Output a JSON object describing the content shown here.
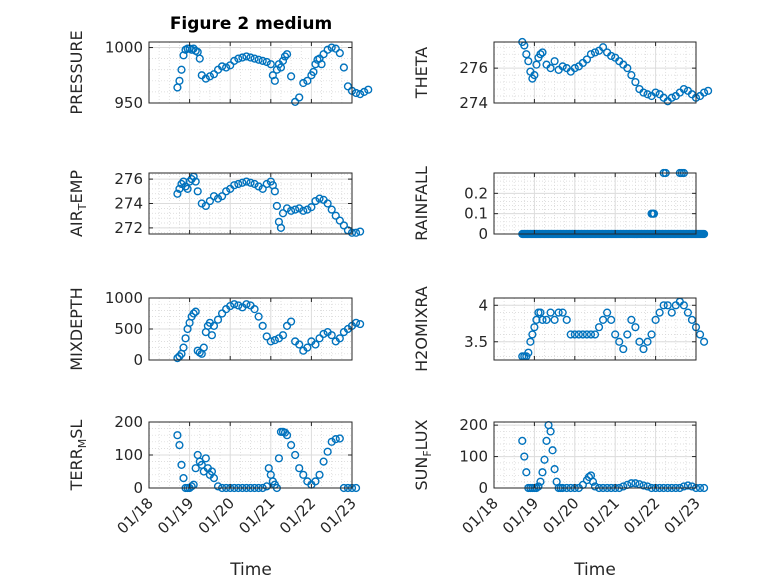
{
  "figure": {
    "title": "Figure 2 medium",
    "accent": "#0072BD"
  },
  "x_axis": {
    "label": "Time",
    "ticks": [
      "01/18",
      "01/19",
      "01/20",
      "01/21",
      "01/22",
      "01/23"
    ]
  },
  "chart_data": [
    {
      "type": "scatter",
      "ylabel": "PRESSURE",
      "title": "Figure 2 medium",
      "xlim": [
        "01/18",
        "01/23"
      ],
      "ylim": [
        950,
        1005
      ],
      "yticks": [
        950,
        1000
      ],
      "grid": true,
      "x": [
        0.7,
        0.75,
        0.8,
        0.85,
        0.9,
        0.95,
        1.0,
        1.05,
        1.1,
        1.15,
        1.2,
        1.25,
        1.3,
        1.4,
        1.5,
        1.6,
        1.7,
        1.8,
        1.9,
        2.0,
        2.1,
        2.2,
        2.3,
        2.4,
        2.5,
        2.6,
        2.7,
        2.8,
        2.9,
        3.0,
        3.05,
        3.1,
        3.15,
        3.2,
        3.25,
        3.3,
        3.35,
        3.4,
        3.5,
        3.6,
        3.7,
        3.8,
        3.9,
        4.0,
        4.05,
        4.1,
        4.15,
        4.2,
        4.25,
        4.3,
        4.4,
        4.5,
        4.6,
        4.7,
        4.8,
        4.9,
        5.0,
        5.1,
        5.2,
        5.3,
        5.4
      ],
      "y": [
        964,
        970,
        980,
        993,
        998,
        999,
        999,
        998,
        999,
        997,
        996,
        990,
        975,
        972,
        974,
        976,
        980,
        983,
        982,
        984,
        988,
        990,
        991,
        992,
        991,
        990,
        989,
        988,
        987,
        985,
        975,
        970,
        980,
        985,
        982,
        988,
        992,
        994,
        974,
        951,
        955,
        968,
        970,
        975,
        978,
        985,
        989,
        990,
        985,
        994,
        998,
        1000,
        999,
        995,
        982,
        965,
        961,
        959,
        958,
        960,
        962
      ],
      "marker": "circle-open",
      "color": "#0072BD"
    },
    {
      "type": "scatter",
      "ylabel": "THETA",
      "xlim": [
        "01/18",
        "01/23"
      ],
      "ylim": [
        274,
        277.5
      ],
      "yticks": [
        274,
        276
      ],
      "grid": true,
      "x": [
        0.7,
        0.75,
        0.8,
        0.85,
        0.9,
        0.95,
        1.0,
        1.05,
        1.1,
        1.15,
        1.2,
        1.3,
        1.4,
        1.5,
        1.6,
        1.7,
        1.8,
        1.9,
        2.0,
        2.1,
        2.2,
        2.3,
        2.4,
        2.5,
        2.6,
        2.7,
        2.8,
        2.9,
        3.0,
        3.1,
        3.2,
        3.3,
        3.4,
        3.5,
        3.6,
        3.7,
        3.8,
        3.9,
        4.0,
        4.1,
        4.2,
        4.3,
        4.4,
        4.5,
        4.6,
        4.7,
        4.8,
        4.9,
        5.0,
        5.1,
        5.2,
        5.3
      ],
      "y": [
        277.5,
        277.3,
        276.8,
        276.4,
        275.8,
        275.4,
        275.6,
        276.2,
        276.6,
        276.8,
        276.9,
        276.2,
        276.0,
        276.4,
        275.9,
        276.1,
        276.0,
        275.8,
        276.0,
        276.1,
        276.3,
        276.5,
        276.8,
        276.9,
        277.0,
        277.2,
        276.9,
        276.7,
        276.6,
        276.4,
        276.2,
        276.0,
        275.6,
        275.2,
        274.8,
        274.6,
        274.5,
        274.4,
        274.6,
        274.5,
        274.3,
        274.1,
        274.3,
        274.4,
        274.6,
        274.8,
        274.7,
        274.5,
        274.3,
        274.4,
        274.6,
        274.7
      ],
      "marker": "circle-open",
      "color": "#0072BD"
    },
    {
      "type": "scatter",
      "ylabel": "AIR_TEMP",
      "xlim": [
        "01/18",
        "01/23"
      ],
      "ylim": [
        271.5,
        276.5
      ],
      "yticks": [
        272,
        274,
        276
      ],
      "grid": true,
      "x": [
        0.7,
        0.75,
        0.8,
        0.85,
        0.9,
        0.95,
        1.0,
        1.05,
        1.1,
        1.15,
        1.2,
        1.3,
        1.4,
        1.5,
        1.6,
        1.7,
        1.8,
        1.9,
        2.0,
        2.1,
        2.2,
        2.3,
        2.4,
        2.5,
        2.6,
        2.7,
        2.8,
        2.9,
        3.0,
        3.05,
        3.1,
        3.15,
        3.2,
        3.25,
        3.3,
        3.4,
        3.5,
        3.6,
        3.7,
        3.8,
        3.9,
        4.0,
        4.1,
        4.2,
        4.3,
        4.4,
        4.5,
        4.6,
        4.7,
        4.8,
        4.9,
        5.0,
        5.1,
        5.2
      ],
      "y": [
        274.8,
        275.2,
        275.6,
        275.8,
        275.4,
        275.2,
        275.8,
        276.0,
        276.2,
        275.8,
        275.0,
        274.0,
        273.8,
        274.2,
        274.6,
        274.4,
        274.6,
        275.0,
        275.2,
        275.5,
        275.6,
        275.7,
        275.8,
        275.7,
        275.6,
        275.4,
        275.2,
        275.6,
        275.8,
        275.5,
        275.0,
        273.8,
        272.5,
        272.0,
        273.2,
        273.6,
        273.4,
        273.5,
        273.6,
        273.4,
        273.5,
        273.7,
        274.2,
        274.4,
        274.3,
        274.0,
        273.5,
        273.0,
        272.6,
        272.2,
        271.8,
        271.6,
        271.6,
        271.7
      ],
      "marker": "circle-open",
      "color": "#0072BD"
    },
    {
      "type": "scatter",
      "ylabel": "RAINFALL",
      "xlim": [
        "01/18",
        "01/23"
      ],
      "ylim": [
        0,
        0.3
      ],
      "yticks": [
        0,
        0.1,
        0.2
      ],
      "grid": true,
      "x_from": 0.7,
      "x_to": 5.2,
      "baseline": 0,
      "x": [
        3.9,
        3.93,
        3.96,
        4.2,
        4.25,
        4.6,
        4.65,
        4.7
      ],
      "y": [
        0.1,
        0.1,
        0.1,
        0.3,
        0.3,
        0.3,
        0.3,
        0.3
      ],
      "marker": "circle-open",
      "color": "#0072BD"
    },
    {
      "type": "scatter",
      "ylabel": "MIXDEPTH",
      "xlim": [
        "01/18",
        "01/23"
      ],
      "ylim": [
        0,
        1000
      ],
      "yticks": [
        0,
        500,
        1000
      ],
      "grid": true,
      "x": [
        0.7,
        0.75,
        0.8,
        0.85,
        0.9,
        0.95,
        1.0,
        1.05,
        1.1,
        1.15,
        1.2,
        1.25,
        1.3,
        1.35,
        1.4,
        1.45,
        1.5,
        1.55,
        1.6,
        1.7,
        1.8,
        1.9,
        2.0,
        2.1,
        2.2,
        2.3,
        2.4,
        2.5,
        2.6,
        2.7,
        2.8,
        2.9,
        3.0,
        3.1,
        3.2,
        3.3,
        3.4,
        3.5,
        3.6,
        3.7,
        3.8,
        3.9,
        4.0,
        4.1,
        4.2,
        4.3,
        4.4,
        4.5,
        4.6,
        4.7,
        4.8,
        4.9,
        5.0,
        5.1,
        5.2
      ],
      "y": [
        30,
        60,
        100,
        200,
        350,
        500,
        600,
        700,
        750,
        780,
        150,
        120,
        100,
        200,
        450,
        550,
        600,
        400,
        550,
        650,
        750,
        820,
        870,
        900,
        880,
        850,
        900,
        880,
        820,
        700,
        550,
        380,
        300,
        320,
        350,
        400,
        550,
        620,
        300,
        250,
        150,
        200,
        300,
        250,
        350,
        420,
        450,
        400,
        300,
        350,
        450,
        500,
        550,
        600,
        580
      ],
      "marker": "circle-open",
      "color": "#0072BD"
    },
    {
      "type": "scatter",
      "ylabel": "H2OMIXRA",
      "xlim": [
        "01/18",
        "01/23"
      ],
      "ylim": [
        3.25,
        4.1
      ],
      "yticks": [
        3.5,
        4
      ],
      "grid": true,
      "x": [
        0.7,
        0.75,
        0.8,
        0.85,
        0.9,
        0.95,
        1.0,
        1.05,
        1.1,
        1.15,
        1.2,
        1.3,
        1.4,
        1.5,
        1.6,
        1.7,
        1.8,
        1.9,
        2.0,
        2.1,
        2.2,
        2.3,
        2.4,
        2.5,
        2.6,
        2.7,
        2.8,
        2.9,
        3.0,
        3.1,
        3.2,
        3.3,
        3.4,
        3.5,
        3.6,
        3.7,
        3.8,
        3.9,
        4.0,
        4.1,
        4.2,
        4.3,
        4.4,
        4.5,
        4.6,
        4.7,
        4.8,
        4.9,
        5.0,
        5.1,
        5.2
      ],
      "y": [
        3.3,
        3.3,
        3.3,
        3.35,
        3.5,
        3.6,
        3.7,
        3.8,
        3.9,
        3.9,
        3.8,
        3.8,
        3.9,
        3.8,
        3.9,
        3.9,
        3.8,
        3.6,
        3.6,
        3.6,
        3.6,
        3.6,
        3.6,
        3.6,
        3.7,
        3.8,
        3.9,
        3.8,
        3.6,
        3.5,
        3.4,
        3.6,
        3.8,
        3.7,
        3.5,
        3.4,
        3.5,
        3.6,
        3.8,
        3.9,
        4.0,
        4.0,
        3.9,
        4.0,
        4.05,
        4.0,
        3.9,
        3.8,
        3.7,
        3.6,
        3.5
      ],
      "marker": "circle-open",
      "color": "#0072BD"
    },
    {
      "type": "scatter",
      "ylabel": "TERR_MSL",
      "xlim": [
        "01/18",
        "01/23"
      ],
      "ylim": [
        0,
        200
      ],
      "yticks": [
        0,
        100,
        200
      ],
      "grid": true,
      "x": [
        0.7,
        0.75,
        0.8,
        0.85,
        0.9,
        0.95,
        1.0,
        1.05,
        1.1,
        1.15,
        1.2,
        1.25,
        1.3,
        1.35,
        1.4,
        1.45,
        1.5,
        1.55,
        1.6,
        1.7,
        1.8,
        1.9,
        2.0,
        2.1,
        2.2,
        2.3,
        2.4,
        2.5,
        2.6,
        2.7,
        2.8,
        2.9,
        2.95,
        3.0,
        3.05,
        3.1,
        3.15,
        3.2,
        3.25,
        3.3,
        3.35,
        3.4,
        3.5,
        3.6,
        3.7,
        3.8,
        3.9,
        4.0,
        4.1,
        4.2,
        4.3,
        4.4,
        4.5,
        4.6,
        4.7,
        4.8,
        4.9,
        5.0,
        5.1
      ],
      "y": [
        160,
        130,
        70,
        30,
        0,
        0,
        0,
        5,
        10,
        60,
        100,
        80,
        70,
        50,
        90,
        60,
        40,
        50,
        30,
        5,
        0,
        0,
        0,
        0,
        0,
        0,
        0,
        0,
        0,
        0,
        0,
        5,
        60,
        40,
        20,
        10,
        0,
        90,
        170,
        170,
        168,
        160,
        130,
        100,
        60,
        40,
        20,
        10,
        20,
        40,
        80,
        110,
        140,
        148,
        150,
        0,
        0,
        0,
        0
      ],
      "marker": "circle-open",
      "color": "#0072BD"
    },
    {
      "type": "scatter",
      "ylabel": "SUN_FLUX",
      "xlim": [
        "01/18",
        "01/23"
      ],
      "ylim": [
        0,
        210
      ],
      "yticks": [
        0,
        100,
        200
      ],
      "grid": true,
      "x": [
        0.7,
        0.75,
        0.8,
        0.85,
        0.9,
        0.95,
        1.0,
        1.05,
        1.1,
        1.15,
        1.2,
        1.25,
        1.3,
        1.35,
        1.4,
        1.45,
        1.5,
        1.55,
        1.6,
        1.65,
        1.7,
        1.8,
        1.9,
        2.0,
        2.1,
        2.2,
        2.3,
        2.35,
        2.4,
        2.45,
        2.5,
        2.6,
        2.7,
        2.8,
        2.9,
        3.0,
        3.1,
        3.2,
        3.3,
        3.4,
        3.5,
        3.6,
        3.7,
        3.8,
        3.9,
        4.0,
        4.1,
        4.2,
        4.3,
        4.4,
        4.5,
        4.6,
        4.7,
        4.8,
        4.9,
        5.0,
        5.1,
        5.2
      ],
      "y": [
        150,
        100,
        50,
        0,
        0,
        0,
        0,
        0,
        5,
        20,
        50,
        90,
        150,
        200,
        180,
        120,
        60,
        20,
        0,
        0,
        0,
        0,
        0,
        0,
        0,
        10,
        25,
        35,
        40,
        20,
        5,
        0,
        0,
        0,
        0,
        0,
        0,
        5,
        10,
        15,
        15,
        12,
        8,
        5,
        0,
        0,
        0,
        0,
        0,
        0,
        0,
        0,
        5,
        8,
        5,
        0,
        0,
        0
      ],
      "marker": "circle-open",
      "color": "#0072BD"
    }
  ]
}
